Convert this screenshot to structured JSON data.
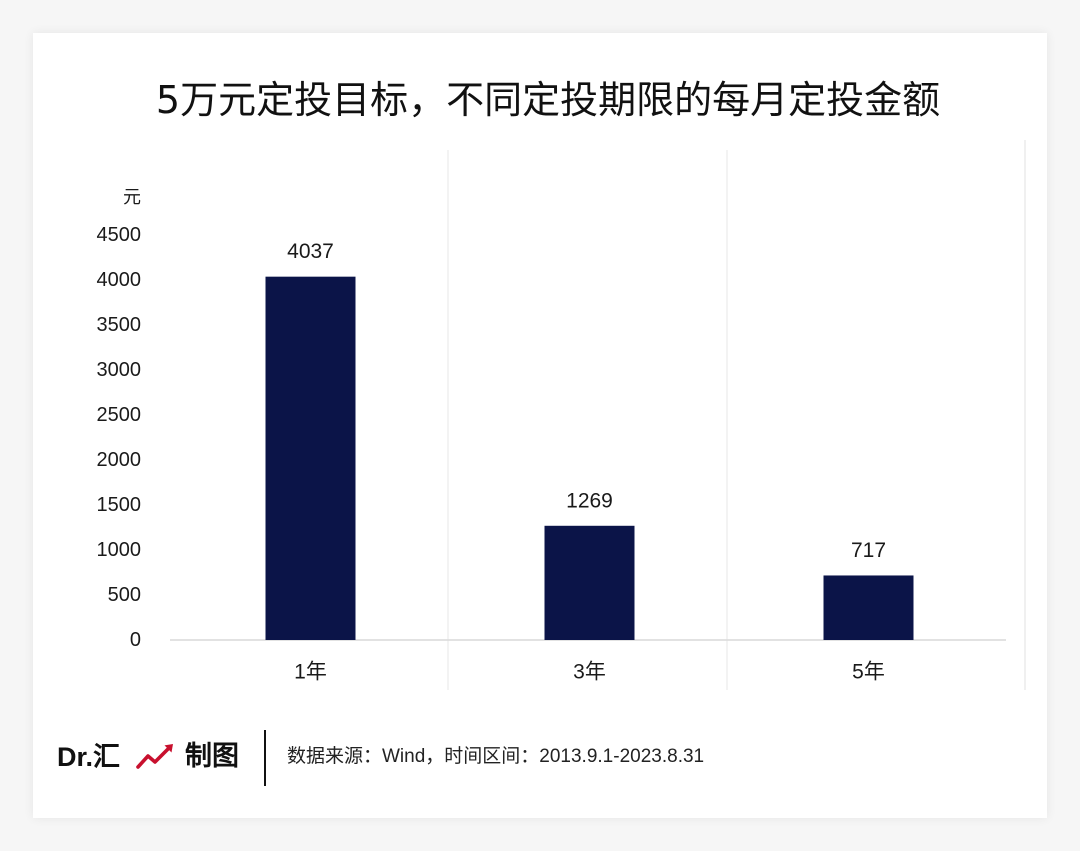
{
  "chart_data": {
    "type": "bar",
    "title": "5万元定投目标，不同定投期限的每月定投金额",
    "xlabel": "",
    "ylabel": "元",
    "categories": [
      "1年",
      "3年",
      "5年"
    ],
    "values": [
      4037,
      1269,
      717
    ],
    "ylim": [
      0,
      4500
    ],
    "yticks": [
      0,
      500,
      1000,
      1500,
      2000,
      2500,
      3000,
      3500,
      4000,
      4500
    ],
    "data_labels": true,
    "grid": false,
    "bar_color": "#0b1448"
  },
  "footer": {
    "brand": "Dr.汇",
    "brand_icon": "trend-arrow-icon",
    "brand_icon_color": "#c8102e",
    "credit": "制图",
    "source": "数据来源：Wind，时间区间：2013.9.1-2023.8.31"
  }
}
